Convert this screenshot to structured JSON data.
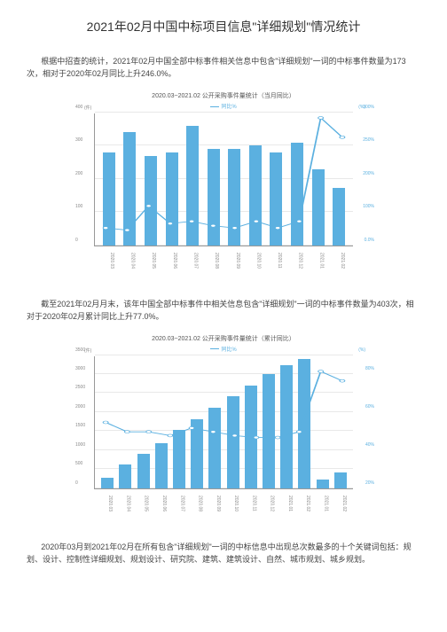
{
  "title": "2021年02月中国中标项目信息\"详细规划\"情况统计",
  "para1": "根据中招查的统计，2021年02月中国全部中标事件相关信息中包含\"详细规划\"一词的中标事件数量为173次，相对于2020年02月同比上升246.0%。",
  "para2": "截至2021年02月月末，该年中国全部中标事件中相关信息包含\"详细规划\"一词的中标事件数量为403次，相对于2020年02月累计同比上升77.0%。",
  "para3": "2020年03月到2021年02月在所有包含\"详细规划\"一词的中标信息中出现总次数最多的十个关键词包括：规划、设计、控制性详细规划、规划设计、研究院、建筑、建筑设计、自然、城市规划、城乡规划。",
  "chart1": {
    "title": "2020.03~2021.02 公开采购事件量统计（当月同比）",
    "legend": "同比%",
    "type": "bar+line",
    "left_caption": "(件)",
    "right_caption": "(%)",
    "bar_color": "#5bb0e0",
    "line_color": "#5bb0e0",
    "grid_color": "#e8e8e8",
    "y_left": {
      "min": 0,
      "max": 400,
      "ticks": [
        0,
        100,
        200,
        300,
        400
      ]
    },
    "y_right": {
      "min": 0,
      "max": 300,
      "ticks": [
        "0.0%",
        "100%",
        "200%",
        "250%",
        "300%"
      ]
    },
    "categories": [
      "2020.03",
      "2020.04",
      "2020.05",
      "2020.06",
      "2020.07",
      "2020.08",
      "2020.09",
      "2020.10",
      "2020.11",
      "2020.12",
      "2021.01",
      "2021.02"
    ],
    "bar_values": [
      280,
      340,
      270,
      280,
      360,
      290,
      290,
      300,
      280,
      310,
      230,
      173
    ],
    "line_values_pct": [
      40,
      35,
      90,
      50,
      55,
      45,
      40,
      55,
      40,
      55,
      290,
      246
    ]
  },
  "chart2": {
    "title": "2020.03~2021.02 公开采购事件量统计（累计同比）",
    "legend": "同比%",
    "type": "bar+line",
    "left_caption": "(件)",
    "right_caption": "(%)",
    "bar_color": "#5bb0e0",
    "line_color": "#5bb0e0",
    "grid_color": "#e8e8e8",
    "y_left": {
      "min": 0,
      "max": 3500,
      "ticks": [
        0,
        500,
        1000,
        1500,
        2000,
        2500,
        3000,
        3500
      ]
    },
    "y_right": {
      "min": 0,
      "max": 90,
      "ticks": [
        "20%",
        "40%",
        "60%",
        "80%"
      ]
    },
    "categories": [
      "2020.03",
      "2020.04",
      "2020.05",
      "2020.06",
      "2020.07",
      "2020.08",
      "2020.09",
      "2020.10",
      "2020.11",
      "2020.12",
      "2021.01",
      "2021.02"
    ],
    "bar_values": [
      280,
      620,
      890,
      1170,
      1530,
      1820,
      2110,
      2410,
      2690,
      3000,
      3230,
      3400,
      230,
      403
    ],
    "bar_slots": [
      "2020.03",
      "2020.04",
      "2020.05",
      "2020.06",
      "2020.07",
      "2020.08",
      "2020.09",
      "2020.10",
      "2020.11",
      "2020.12",
      "2021.01",
      "2021.02"
    ],
    "bars_display": [
      280,
      620,
      890,
      1170,
      1530,
      1820,
      2110,
      2410,
      2690,
      3000,
      3230,
      3400
    ],
    "extra_small": [
      230,
      403
    ],
    "line_values_pct": [
      55,
      50,
      50,
      48,
      52,
      50,
      48,
      47,
      47,
      50,
      82,
      77
    ]
  }
}
